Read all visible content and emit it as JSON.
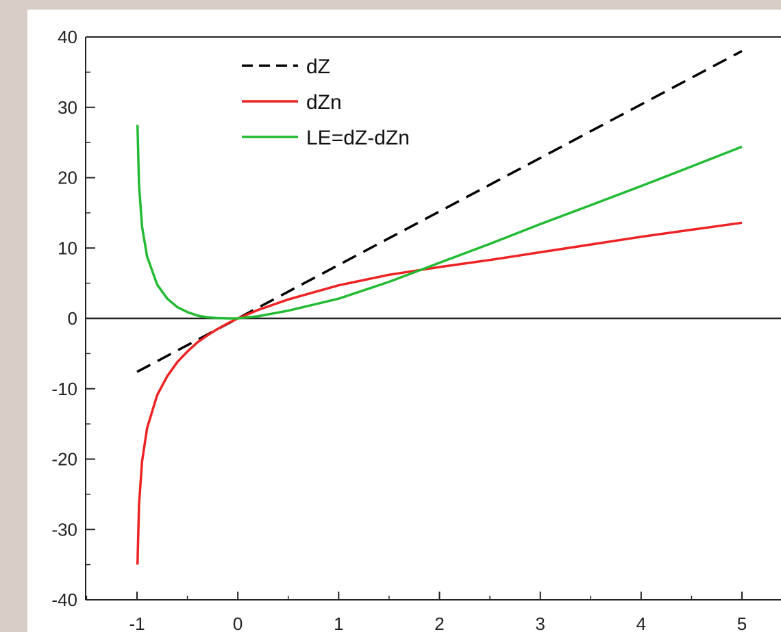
{
  "chart_data": {
    "type": "line",
    "title": "",
    "xlabel": "",
    "ylabel": "",
    "xlim": [
      -1,
      5
    ],
    "ylim": [
      -40,
      40
    ],
    "x_ticks": [
      "-1",
      "0",
      "1",
      "2",
      "3",
      "4",
      "5"
    ],
    "y_ticks": [
      "40",
      "30",
      "20",
      "10",
      "0",
      "-10",
      "-20",
      "-30",
      "-40"
    ],
    "grid": false,
    "legend_position": "top-left",
    "series": [
      {
        "name": "dZ",
        "color": "#000000",
        "style": "dashed",
        "x": [
          -1,
          0,
          1,
          2,
          3,
          4,
          5
        ],
        "y": [
          -7.6,
          0,
          7.6,
          15.2,
          22.8,
          30.4,
          38.0
        ]
      },
      {
        "name": "dZn",
        "color": "#ee2222",
        "style": "solid",
        "x": [
          -0.995,
          -0.98,
          -0.95,
          -0.9,
          -0.8,
          -0.7,
          -0.6,
          -0.5,
          -0.4,
          -0.3,
          -0.2,
          -0.1,
          0,
          0.2,
          0.5,
          1.0,
          1.5,
          2.0,
          2.5,
          3.0,
          3.5,
          4.0,
          4.5,
          5.0
        ],
        "y": [
          -35.0,
          -26.5,
          -20.3,
          -15.6,
          -10.9,
          -8.2,
          -6.2,
          -4.7,
          -3.4,
          -2.4,
          -1.5,
          -0.7,
          0,
          1.2,
          2.7,
          4.7,
          6.2,
          7.3,
          8.3,
          9.4,
          10.5,
          11.6,
          12.6,
          13.6
        ]
      },
      {
        "name": "LE=dZ-dZn",
        "color": "#22bb33",
        "style": "solid",
        "x": [
          -0.995,
          -0.98,
          -0.95,
          -0.9,
          -0.8,
          -0.7,
          -0.6,
          -0.5,
          -0.4,
          -0.3,
          -0.2,
          -0.1,
          0,
          0.2,
          0.5,
          1.0,
          1.5,
          2.0,
          2.5,
          3.0,
          3.5,
          4.0,
          4.5,
          5.0
        ],
        "y": [
          27.5,
          19.0,
          13.0,
          8.8,
          4.8,
          2.8,
          1.6,
          0.9,
          0.4,
          0.15,
          0.05,
          0.0,
          0,
          0.3,
          1.1,
          2.8,
          5.2,
          7.9,
          10.6,
          13.4,
          16.1,
          18.8,
          21.6,
          24.4
        ]
      }
    ]
  }
}
